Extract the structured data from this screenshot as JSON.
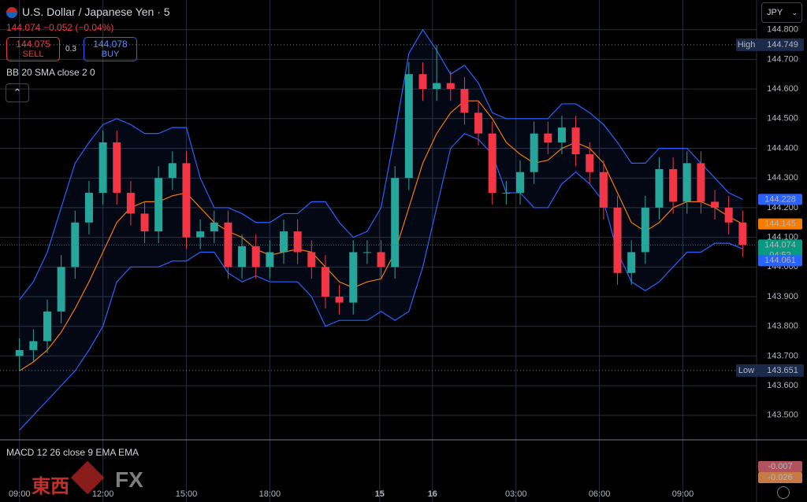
{
  "header": {
    "symbol": "U.S. Dollar / Japanese Yen · 5",
    "quote": "144.074",
    "change": "−0.052 (−0.04%)",
    "sell": {
      "price": "144.075",
      "label": "SELL"
    },
    "spread": "0.3",
    "buy": {
      "price": "144.078",
      "label": "BUY"
    },
    "indicator": "BB 20 SMA close 2 0",
    "currency": "JPY"
  },
  "chart_data": {
    "type": "candlestick",
    "open": [
      143.7,
      143.72,
      143.75,
      143.85,
      144.0,
      144.15,
      144.25,
      144.42,
      144.25,
      144.18,
      144.12,
      144.3,
      144.35,
      144.1,
      144.12,
      144.15,
      144.0,
      144.07,
      144.0,
      144.05,
      144.12,
      144.05,
      144.0,
      143.9,
      143.88,
      144.05,
      144.05,
      144.0,
      144.3,
      144.65,
      144.6,
      144.62,
      144.6,
      144.52,
      144.45,
      144.25,
      144.25,
      144.32,
      144.45,
      144.42,
      144.47,
      144.38,
      144.32,
      144.2,
      143.98,
      144.05,
      144.2,
      144.33,
      144.22,
      144.35,
      144.22,
      144.2,
      144.15
    ],
    "high": [
      143.76,
      143.79,
      143.89,
      144.04,
      144.19,
      144.29,
      144.46,
      144.46,
      144.29,
      144.22,
      144.34,
      144.39,
      144.39,
      144.16,
      144.19,
      144.19,
      144.11,
      144.11,
      144.09,
      144.16,
      144.16,
      144.09,
      144.04,
      143.94,
      144.09,
      144.09,
      144.09,
      144.34,
      144.69,
      144.69,
      144.749,
      144.66,
      144.64,
      144.56,
      144.49,
      144.29,
      144.36,
      144.49,
      144.49,
      144.51,
      144.51,
      144.42,
      144.36,
      144.24,
      144.09,
      144.24,
      144.37,
      144.37,
      144.39,
      144.39,
      144.26,
      144.24,
      144.19
    ],
    "low": [
      143.651,
      143.68,
      143.71,
      143.81,
      143.96,
      144.11,
      144.21,
      144.21,
      144.14,
      144.08,
      144.08,
      144.26,
      144.06,
      144.06,
      144.08,
      143.96,
      143.96,
      143.96,
      143.96,
      144.01,
      144.01,
      143.96,
      143.86,
      143.84,
      143.84,
      144.01,
      143.96,
      143.96,
      144.26,
      144.56,
      144.56,
      144.56,
      144.48,
      144.41,
      144.21,
      144.21,
      144.21,
      144.28,
      144.38,
      144.38,
      144.34,
      144.28,
      144.16,
      143.94,
      143.94,
      144.01,
      144.16,
      144.18,
      144.18,
      144.18,
      144.16,
      144.11,
      144.034
    ],
    "close": [
      143.72,
      143.75,
      143.85,
      144.0,
      144.15,
      144.25,
      144.42,
      144.25,
      144.18,
      144.12,
      144.3,
      144.35,
      144.1,
      144.12,
      144.15,
      144.0,
      144.07,
      144.0,
      144.05,
      144.12,
      144.05,
      144.0,
      143.9,
      143.88,
      144.05,
      144.05,
      144.0,
      144.3,
      144.65,
      144.6,
      144.62,
      144.6,
      144.52,
      144.45,
      144.25,
      144.25,
      144.32,
      144.45,
      144.42,
      144.47,
      144.38,
      144.32,
      144.2,
      143.98,
      144.05,
      144.2,
      144.33,
      144.22,
      144.35,
      144.22,
      144.2,
      144.15,
      144.074
    ],
    "up_color": "#26a69a",
    "down_color": "#f23645",
    "bb_upper": {
      "color": "#2962ff",
      "values": [
        143.89,
        143.95,
        144.05,
        144.2,
        144.35,
        144.42,
        144.48,
        144.5,
        144.48,
        144.45,
        144.45,
        144.47,
        144.47,
        144.3,
        144.2,
        144.2,
        144.18,
        144.15,
        144.15,
        144.18,
        144.18,
        144.22,
        144.22,
        144.15,
        144.1,
        144.12,
        144.2,
        144.45,
        144.72,
        144.8,
        144.73,
        144.65,
        144.68,
        144.62,
        144.52,
        144.5,
        144.5,
        144.5,
        144.5,
        144.55,
        144.55,
        144.52,
        144.48,
        144.42,
        144.35,
        144.35,
        144.4,
        144.4,
        144.4,
        144.35,
        144.3,
        144.25,
        144.228
      ]
    },
    "bb_middle": {
      "color": "#f57c00",
      "values": [
        143.65,
        143.68,
        143.72,
        143.78,
        143.86,
        143.95,
        144.05,
        144.15,
        144.2,
        144.22,
        144.22,
        144.24,
        144.25,
        144.2,
        144.15,
        144.12,
        144.1,
        144.06,
        144.04,
        144.05,
        144.06,
        144.05,
        144.0,
        143.95,
        143.93,
        143.95,
        143.96,
        144.05,
        144.2,
        144.35,
        144.45,
        144.52,
        144.56,
        144.56,
        144.5,
        144.42,
        144.38,
        144.35,
        144.36,
        144.4,
        144.42,
        144.4,
        144.35,
        144.25,
        144.15,
        144.12,
        144.15,
        144.2,
        144.22,
        144.22,
        144.2,
        144.17,
        144.145
      ]
    },
    "bb_lower": {
      "color": "#2962ff",
      "values": [
        143.45,
        143.5,
        143.55,
        143.6,
        143.65,
        143.72,
        143.8,
        143.95,
        144.0,
        144.0,
        144.0,
        144.02,
        144.02,
        144.05,
        144.05,
        143.98,
        143.95,
        143.97,
        143.95,
        143.95,
        143.95,
        143.9,
        143.8,
        143.82,
        143.82,
        143.82,
        143.85,
        143.82,
        143.85,
        144.0,
        144.2,
        144.4,
        144.45,
        144.43,
        144.38,
        144.25,
        144.25,
        144.2,
        144.2,
        144.28,
        144.32,
        144.28,
        144.22,
        144.05,
        143.95,
        143.92,
        143.95,
        144.0,
        144.05,
        144.05,
        144.08,
        144.08,
        144.061
      ]
    },
    "xlim": [
      -1.4,
      53
    ],
    "xticks": [
      {
        "value": 0,
        "label": "09:00"
      },
      {
        "value": 6,
        "label": "12:00"
      },
      {
        "value": 12,
        "label": "15:00"
      },
      {
        "value": 18,
        "label": "18:00"
      },
      {
        "value": 25.9,
        "label": "15"
      },
      {
        "value": 29.7,
        "label": "16"
      },
      {
        "value": 35.7,
        "label": "03:00"
      },
      {
        "value": 41.7,
        "label": "06:00"
      },
      {
        "value": 47.7,
        "label": "09:00"
      }
    ],
    "ylim": [
      143.42,
      144.9
    ],
    "yticks": [
      {
        "value": 143.5,
        "label": "143.500"
      },
      {
        "value": 143.6,
        "label": "143.600"
      },
      {
        "value": 143.7,
        "label": "143.700"
      },
      {
        "value": 143.8,
        "label": "143.800"
      },
      {
        "value": 143.9,
        "label": "143.900"
      },
      {
        "value": 144.0,
        "label": "144.000"
      },
      {
        "value": 144.1,
        "label": "144.100"
      },
      {
        "value": 144.2,
        "label": "144.200"
      },
      {
        "value": 144.3,
        "label": "144.300"
      },
      {
        "value": 144.4,
        "label": "144.400"
      },
      {
        "value": 144.5,
        "label": "144.500"
      },
      {
        "value": 144.6,
        "label": "144.600"
      },
      {
        "value": 144.7,
        "label": "144.700"
      },
      {
        "value": 144.8,
        "label": "144.800"
      }
    ],
    "grid": true,
    "markers": {
      "high": {
        "label": "High",
        "value": 144.749
      },
      "low": {
        "label": "Low",
        "value": 143.651
      }
    },
    "countdown": "04:52"
  },
  "macd": {
    "title": "MACD 12 26 close 9 EMA EMA",
    "values": [
      -0.007,
      -0.026
    ]
  },
  "watermark": {
    "a": "東西",
    "b": "FX"
  }
}
